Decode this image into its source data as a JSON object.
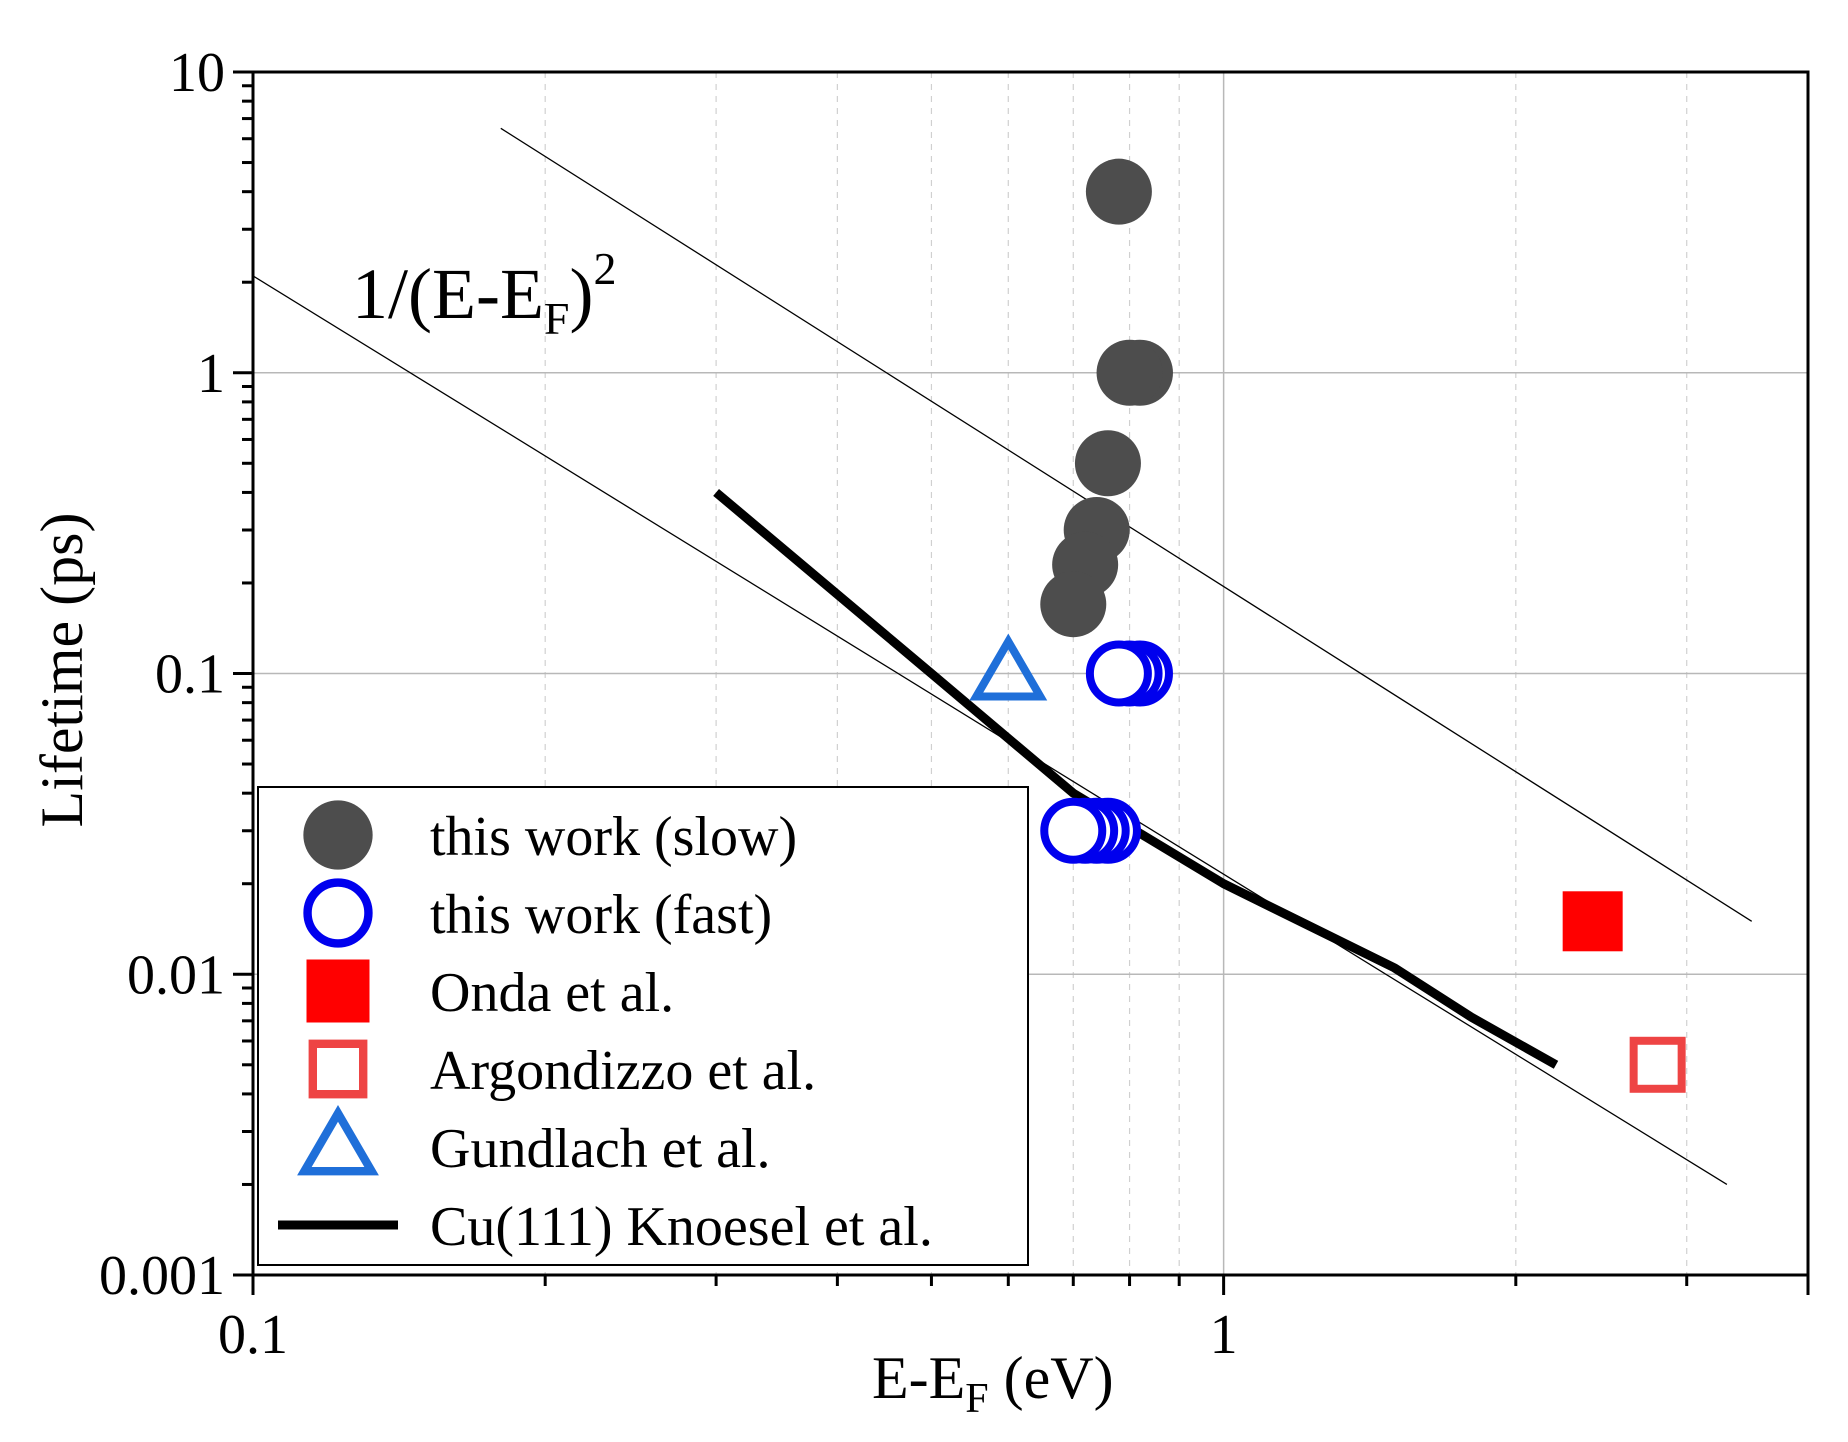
{
  "chart_data": {
    "type": "scatter",
    "xscale": "log",
    "yscale": "log",
    "xlim": [
      0.1,
      4.0
    ],
    "ylim": [
      0.001,
      10
    ],
    "xlabel": {
      "main": "E-E",
      "sub": "F",
      "tail": " (eV)"
    },
    "ylabel": "Lifetime (ps)",
    "xticks": [
      {
        "value": 0.1,
        "label": "0.1"
      },
      {
        "value": 1,
        "label": "1"
      }
    ],
    "yticks": [
      {
        "value": 0.001,
        "label": "0.001"
      },
      {
        "value": 0.01,
        "label": "0.01"
      },
      {
        "value": 0.1,
        "label": "0.1"
      },
      {
        "value": 1,
        "label": "1"
      },
      {
        "value": 10,
        "label": "10"
      }
    ],
    "grid": true,
    "annotation": {
      "pre": "1/(E-E",
      "sub": "F",
      "post": ")",
      "sup": "2"
    },
    "series": [
      {
        "name": "this work (slow)",
        "marker": "filled-circle",
        "color": "#4d4d4d",
        "points": [
          [
            0.78,
            4.0
          ],
          [
            0.82,
            1.0
          ],
          [
            0.8,
            1.0
          ],
          [
            0.76,
            0.5
          ],
          [
            0.74,
            0.3
          ],
          [
            0.72,
            0.23
          ],
          [
            0.7,
            0.17
          ]
        ]
      },
      {
        "name": "this work (fast)",
        "marker": "open-circle",
        "color": "#0000ee",
        "points": [
          [
            0.82,
            0.1
          ],
          [
            0.8,
            0.1
          ],
          [
            0.78,
            0.1
          ],
          [
            0.76,
            0.03
          ],
          [
            0.74,
            0.03
          ],
          [
            0.72,
            0.03
          ],
          [
            0.7,
            0.03
          ]
        ]
      },
      {
        "name": "Onda et al.",
        "marker": "filled-square",
        "color": "#ff0000",
        "points": [
          [
            2.4,
            0.015
          ]
        ]
      },
      {
        "name": "Argondizzo et al.",
        "marker": "open-square",
        "color": "#ee4444",
        "points": [
          [
            2.8,
            0.005
          ]
        ]
      },
      {
        "name": "Gundlach et al.",
        "marker": "open-triangle",
        "color": "#1f6fd9",
        "points": [
          [
            0.6,
            0.1
          ]
        ]
      }
    ],
    "lines": [
      {
        "name": "Cu(111) Knoesel et al.",
        "color": "#000000",
        "points": [
          [
            0.3,
            0.4
          ],
          [
            0.5,
            0.1
          ],
          [
            0.7,
            0.04
          ],
          [
            1.0,
            0.02
          ],
          [
            1.5,
            0.0105
          ],
          [
            1.8,
            0.0072
          ],
          [
            2.2,
            0.005
          ]
        ]
      }
    ],
    "guide_lines": [
      {
        "label": "1/(E-E_F)^2 upper",
        "points": [
          [
            0.18,
            6.5
          ],
          [
            3.5,
            0.015
          ]
        ]
      },
      {
        "label": "1/(E-E_F)^2 lower",
        "points": [
          [
            0.1,
            2.1
          ],
          [
            3.3,
            0.002
          ]
        ]
      }
    ],
    "legend": {
      "position": "bottom-left",
      "entries": [
        {
          "label": "this work (slow)",
          "marker": "filled-circle",
          "color": "#4d4d4d"
        },
        {
          "label": "this work (fast)",
          "marker": "open-circle",
          "color": "#0000ee"
        },
        {
          "label": "Onda et al.",
          "marker": "filled-square",
          "color": "#ff0000"
        },
        {
          "label": "Argondizzo et al.",
          "marker": "open-square",
          "color": "#ee4444"
        },
        {
          "label": "Gundlach et al.",
          "marker": "open-triangle",
          "color": "#1f6fd9"
        },
        {
          "label": "Cu(111) Knoesel et al.",
          "marker": "line",
          "color": "#000000"
        }
      ]
    }
  }
}
